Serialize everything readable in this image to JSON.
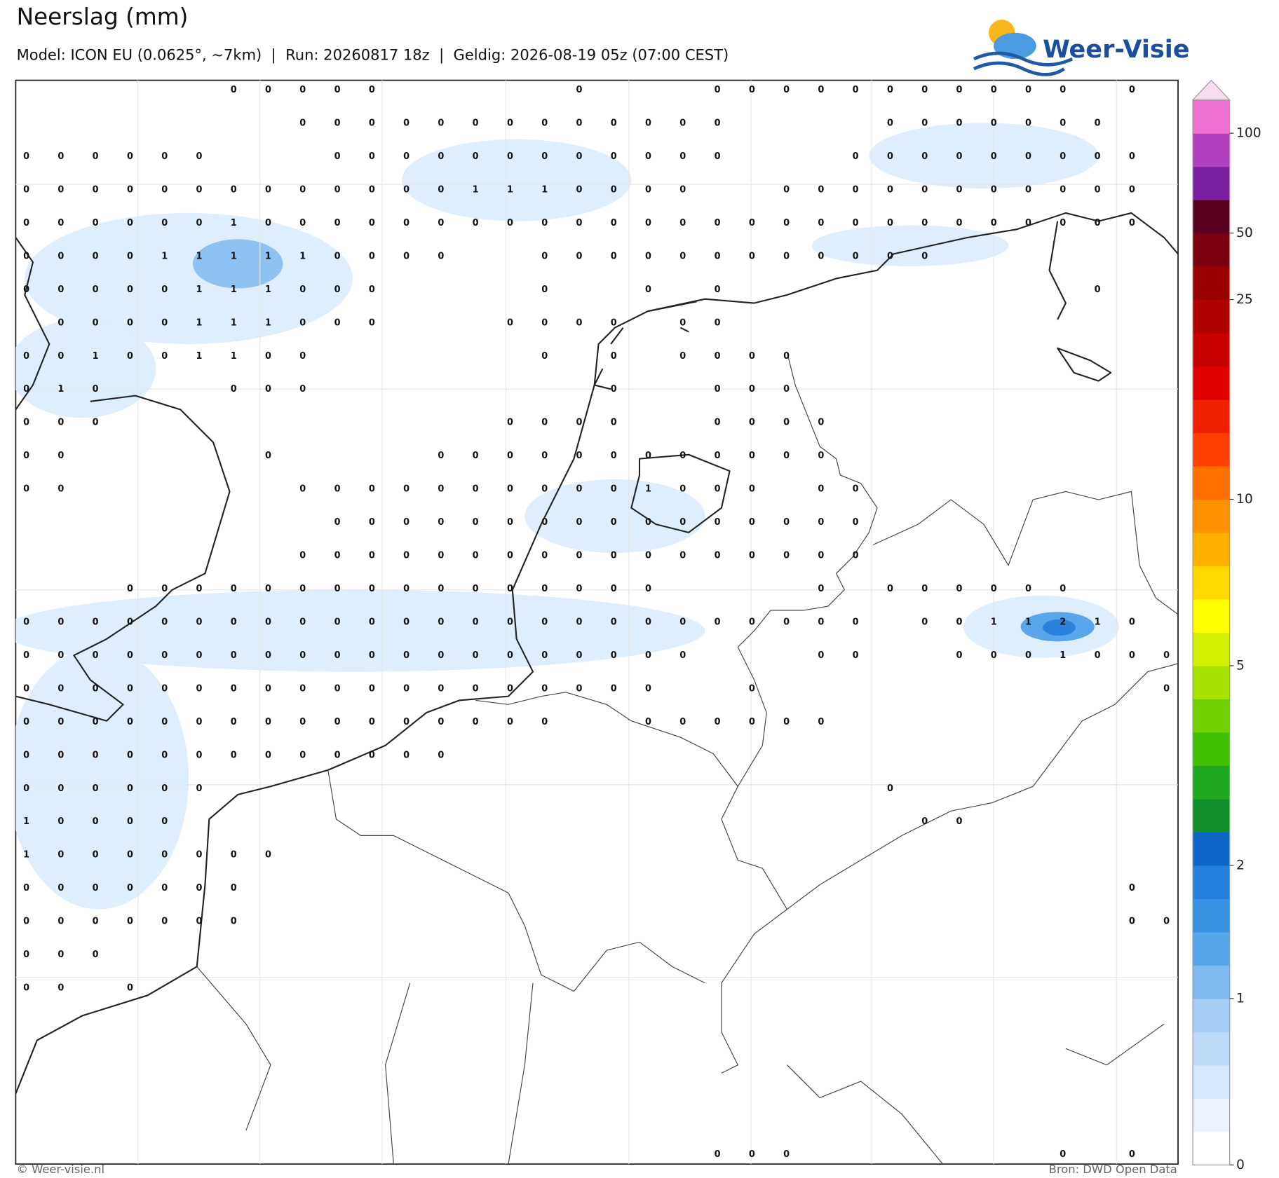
{
  "header": {
    "title": "Neerslag (mm)",
    "subtitle": "Model: ICON EU (0.0625°, ~7km)  |  Run: 20260817 18z  |  Geldig: 2026-08-19 05z (07:00 CEST)",
    "brand": "Weer-Visie"
  },
  "grid": {
    "rows": [
      [
        null,
        null,
        null,
        null,
        null,
        null,
        0,
        0,
        0,
        0,
        0,
        null,
        null,
        null,
        null,
        null,
        0,
        null,
        null,
        null,
        0,
        0,
        0,
        0,
        0,
        0,
        0,
        0,
        0,
        0,
        0,
        null,
        0,
        null
      ],
      [
        null,
        null,
        null,
        null,
        null,
        null,
        null,
        null,
        0,
        0,
        0,
        0,
        0,
        0,
        0,
        0,
        0,
        0,
        0,
        0,
        0,
        null,
        null,
        null,
        null,
        0,
        0,
        0,
        0,
        0,
        0,
        0,
        null,
        null
      ],
      [
        0,
        0,
        0,
        0,
        0,
        0,
        null,
        null,
        null,
        0,
        0,
        0,
        0,
        0,
        0,
        0,
        0,
        0,
        0,
        0,
        0,
        null,
        null,
        null,
        0,
        0,
        0,
        0,
        0,
        0,
        0,
        0,
        0,
        null
      ],
      [
        0,
        0,
        0,
        0,
        0,
        0,
        0,
        0,
        0,
        0,
        0,
        0,
        0,
        1,
        1,
        1,
        0,
        0,
        0,
        0,
        null,
        null,
        0,
        0,
        0,
        0,
        0,
        0,
        0,
        0,
        0,
        0,
        0,
        null
      ],
      [
        0,
        0,
        0,
        0,
        0,
        0,
        1,
        0,
        0,
        0,
        0,
        0,
        0,
        0,
        0,
        0,
        0,
        0,
        0,
        0,
        0,
        0,
        0,
        0,
        0,
        0,
        0,
        0,
        0,
        0,
        0,
        0,
        0,
        null
      ],
      [
        0,
        0,
        0,
        0,
        1,
        1,
        1,
        1,
        1,
        0,
        0,
        0,
        0,
        null,
        null,
        0,
        0,
        0,
        0,
        0,
        0,
        0,
        0,
        0,
        0,
        0,
        0,
        null,
        null,
        null,
        null,
        null,
        null,
        null
      ],
      [
        0,
        0,
        0,
        0,
        0,
        1,
        1,
        1,
        0,
        0,
        0,
        null,
        null,
        null,
        null,
        0,
        null,
        null,
        0,
        null,
        0,
        null,
        null,
        null,
        null,
        null,
        null,
        null,
        null,
        null,
        null,
        0,
        null,
        null
      ],
      [
        null,
        0,
        0,
        0,
        0,
        1,
        1,
        1,
        0,
        0,
        0,
        null,
        null,
        null,
        0,
        0,
        0,
        0,
        null,
        0,
        0,
        null,
        null,
        null,
        null,
        null,
        null,
        null,
        null,
        null,
        null,
        null,
        null,
        null
      ],
      [
        0,
        0,
        1,
        0,
        0,
        1,
        1,
        0,
        0,
        null,
        null,
        null,
        null,
        null,
        null,
        0,
        null,
        0,
        null,
        0,
        0,
        0,
        0,
        null,
        null,
        null,
        null,
        null,
        null,
        null,
        null,
        null,
        null,
        null
      ],
      [
        0,
        1,
        0,
        null,
        null,
        null,
        0,
        0,
        0,
        null,
        null,
        null,
        null,
        null,
        null,
        null,
        null,
        0,
        null,
        null,
        0,
        0,
        0,
        null,
        null,
        null,
        null,
        null,
        null,
        null,
        null,
        null,
        null,
        null
      ],
      [
        0,
        0,
        0,
        null,
        null,
        null,
        null,
        null,
        null,
        null,
        null,
        null,
        null,
        null,
        0,
        0,
        0,
        0,
        null,
        null,
        0,
        0,
        0,
        0,
        null,
        null,
        null,
        null,
        null,
        null,
        null,
        null,
        null,
        null
      ],
      [
        0,
        0,
        null,
        null,
        null,
        null,
        null,
        0,
        null,
        null,
        null,
        null,
        0,
        0,
        0,
        0,
        0,
        0,
        0,
        0,
        0,
        0,
        0,
        0,
        null,
        null,
        null,
        null,
        null,
        null,
        null,
        null,
        null,
        null
      ],
      [
        0,
        0,
        null,
        null,
        null,
        null,
        null,
        null,
        0,
        0,
        0,
        0,
        0,
        0,
        0,
        0,
        0,
        0,
        1,
        0,
        0,
        0,
        null,
        0,
        0,
        null,
        null,
        null,
        null,
        null,
        null,
        null,
        null,
        null
      ],
      [
        null,
        null,
        null,
        null,
        null,
        null,
        null,
        null,
        null,
        0,
        0,
        0,
        0,
        0,
        0,
        0,
        0,
        0,
        0,
        0,
        0,
        0,
        0,
        0,
        0,
        null,
        null,
        null,
        null,
        null,
        null,
        null,
        null,
        null
      ],
      [
        null,
        null,
        null,
        null,
        null,
        null,
        null,
        null,
        0,
        0,
        0,
        0,
        0,
        0,
        0,
        0,
        0,
        0,
        0,
        0,
        0,
        0,
        0,
        0,
        0,
        null,
        null,
        null,
        null,
        null,
        null,
        null,
        null,
        null
      ],
      [
        null,
        null,
        null,
        0,
        0,
        0,
        0,
        0,
        0,
        0,
        0,
        0,
        0,
        0,
        0,
        0,
        0,
        0,
        0,
        null,
        null,
        null,
        null,
        0,
        null,
        0,
        0,
        0,
        0,
        0,
        0,
        null,
        null,
        null
      ],
      [
        0,
        0,
        0,
        0,
        0,
        0,
        0,
        0,
        0,
        0,
        0,
        0,
        0,
        0,
        0,
        0,
        0,
        0,
        0,
        0,
        0,
        0,
        0,
        0,
        0,
        null,
        0,
        0,
        1,
        1,
        2,
        1,
        0,
        null
      ],
      [
        0,
        0,
        0,
        0,
        0,
        0,
        0,
        0,
        0,
        0,
        0,
        0,
        0,
        0,
        0,
        0,
        0,
        0,
        0,
        0,
        null,
        null,
        null,
        0,
        0,
        null,
        null,
        0,
        0,
        0,
        1,
        0,
        0,
        0
      ],
      [
        0,
        0,
        0,
        0,
        0,
        0,
        0,
        0,
        0,
        0,
        0,
        0,
        0,
        0,
        0,
        0,
        0,
        0,
        0,
        null,
        null,
        0,
        null,
        null,
        null,
        null,
        null,
        null,
        null,
        null,
        null,
        null,
        null,
        0
      ],
      [
        0,
        0,
        0,
        0,
        0,
        0,
        0,
        0,
        0,
        0,
        0,
        0,
        0,
        0,
        0,
        0,
        null,
        null,
        0,
        0,
        0,
        0,
        0,
        0,
        null,
        null,
        null,
        null,
        null,
        null,
        null,
        null,
        null,
        null
      ],
      [
        0,
        0,
        0,
        0,
        0,
        0,
        0,
        0,
        0,
        0,
        0,
        0,
        0,
        null,
        null,
        null,
        null,
        null,
        null,
        null,
        null,
        null,
        null,
        null,
        null,
        null,
        null,
        null,
        null,
        null,
        null,
        null,
        null,
        null
      ],
      [
        0,
        0,
        0,
        0,
        0,
        0,
        null,
        null,
        null,
        null,
        null,
        null,
        null,
        null,
        null,
        null,
        null,
        null,
        null,
        null,
        null,
        null,
        null,
        null,
        null,
        0,
        null,
        null,
        null,
        null,
        null,
        null,
        null,
        null
      ],
      [
        1,
        0,
        0,
        0,
        0,
        null,
        null,
        null,
        null,
        null,
        null,
        null,
        null,
        null,
        null,
        null,
        null,
        null,
        null,
        null,
        null,
        null,
        null,
        null,
        null,
        null,
        0,
        0,
        null,
        null,
        null,
        null,
        null,
        null
      ],
      [
        1,
        0,
        0,
        0,
        0,
        0,
        0,
        0,
        null,
        null,
        null,
        null,
        null,
        null,
        null,
        null,
        null,
        null,
        null,
        null,
        null,
        null,
        null,
        null,
        null,
        null,
        null,
        null,
        null,
        null,
        null,
        null,
        null,
        null
      ],
      [
        0,
        0,
        0,
        0,
        0,
        0,
        0,
        null,
        null,
        null,
        null,
        null,
        null,
        null,
        null,
        null,
        null,
        null,
        null,
        null,
        null,
        null,
        null,
        null,
        null,
        null,
        null,
        null,
        null,
        null,
        null,
        null,
        0,
        null
      ],
      [
        0,
        0,
        0,
        0,
        0,
        0,
        0,
        null,
        null,
        null,
        null,
        null,
        null,
        null,
        null,
        null,
        null,
        null,
        null,
        null,
        null,
        null,
        null,
        null,
        null,
        null,
        null,
        null,
        null,
        null,
        null,
        null,
        0,
        0
      ],
      [
        0,
        0,
        0,
        null,
        null,
        null,
        null,
        null,
        null,
        null,
        null,
        null,
        null,
        null,
        null,
        null,
        null,
        null,
        null,
        null,
        null,
        null,
        null,
        null,
        null,
        null,
        null,
        null,
        null,
        null,
        null,
        null,
        null,
        null
      ],
      [
        0,
        0,
        null,
        0,
        null,
        null,
        null,
        null,
        null,
        null,
        null,
        null,
        null,
        null,
        null,
        null,
        null,
        null,
        null,
        null,
        null,
        null,
        null,
        null,
        null,
        null,
        null,
        null,
        null,
        null,
        null,
        null,
        null,
        null
      ],
      [
        null,
        null,
        null,
        null,
        null,
        null,
        null,
        null,
        null,
        null,
        null,
        null,
        null,
        null,
        null,
        null,
        null,
        null,
        null,
        null,
        null,
        null,
        null,
        null,
        null,
        null,
        null,
        null,
        null,
        null,
        null,
        null,
        null,
        null
      ],
      [
        null,
        null,
        null,
        null,
        null,
        null,
        null,
        null,
        null,
        null,
        null,
        null,
        null,
        null,
        null,
        null,
        null,
        null,
        null,
        null,
        null,
        null,
        null,
        null,
        null,
        null,
        null,
        null,
        null,
        null,
        null,
        null,
        null,
        null
      ],
      [
        null,
        null,
        null,
        null,
        null,
        null,
        null,
        null,
        null,
        null,
        null,
        null,
        null,
        null,
        null,
        null,
        null,
        null,
        null,
        null,
        null,
        null,
        null,
        null,
        null,
        null,
        null,
        null,
        null,
        null,
        null,
        null,
        null,
        null
      ],
      [
        null,
        null,
        null,
        null,
        null,
        null,
        null,
        null,
        null,
        null,
        null,
        null,
        null,
        null,
        null,
        null,
        null,
        null,
        null,
        null,
        null,
        null,
        null,
        null,
        null,
        null,
        null,
        null,
        null,
        null,
        null,
        null,
        null,
        null
      ],
      [
        null,
        null,
        null,
        null,
        null,
        null,
        null,
        null,
        null,
        null,
        null,
        null,
        null,
        null,
        null,
        null,
        null,
        null,
        null,
        null,
        0,
        0,
        0,
        null,
        null,
        null,
        null,
        null,
        null,
        null,
        0,
        null,
        0,
        null
      ]
    ]
  },
  "colorbar": {
    "ticks": [
      0,
      1,
      2,
      5,
      10,
      25,
      50,
      100
    ],
    "colors": [
      "#ffffff",
      "#eaf3fd",
      "#d6e8fa",
      "#bedcf8",
      "#a4cef5",
      "#7ebaf0",
      "#58a6ea",
      "#3a90e2",
      "#2480dc",
      "#1066c8",
      "#10902a",
      "#20a820",
      "#40c000",
      "#70d000",
      "#a8e000",
      "#d0f000",
      "#ffff00",
      "#ffd800",
      "#ffb000",
      "#ff9000",
      "#ff7000",
      "#ff4000",
      "#f02000",
      "#e00000",
      "#c80000",
      "#b00000",
      "#9a0000",
      "#7a0010",
      "#5a0020",
      "#7a1fa0",
      "#b040c0",
      "#f070d0"
    ],
    "extend_color": "#fadcf0"
  },
  "footer": {
    "copyright": "© Weer-visie.nl",
    "source": "Bron: DWD Open Data"
  }
}
